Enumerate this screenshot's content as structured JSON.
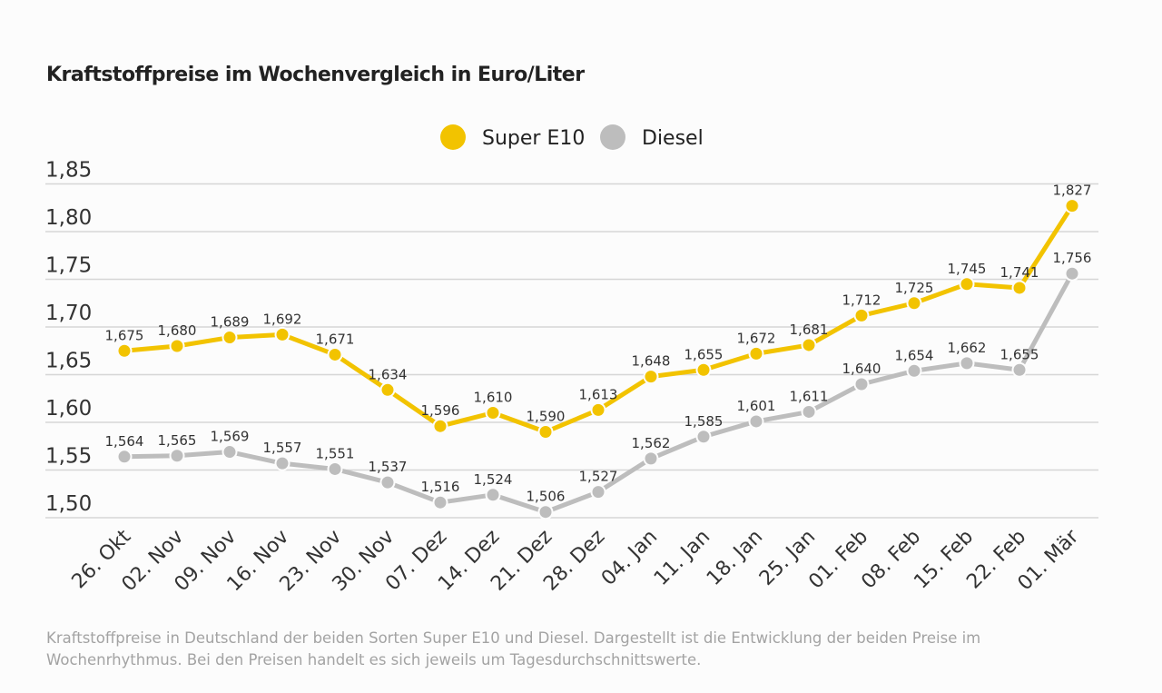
{
  "chart_data": {
    "type": "line",
    "title": "Kraftstoffpreise im Wochenvergleich in Euro/Liter",
    "categories": [
      "26. Okt",
      "02. Nov",
      "09. Nov",
      "16. Nov",
      "23. Nov",
      "30. Nov",
      "07. Dez",
      "14. Dez",
      "21. Dez",
      "28. Dez",
      "04. Jan",
      "11. Jan",
      "18. Jan",
      "25. Jan",
      "01. Feb",
      "08. Feb",
      "15. Feb",
      "22. Feb",
      "01. Mär"
    ],
    "series": [
      {
        "name": "Super E10",
        "color": "#f2c300",
        "values": [
          1.675,
          1.68,
          1.689,
          1.692,
          1.671,
          1.634,
          1.596,
          1.61,
          1.59,
          1.613,
          1.648,
          1.655,
          1.672,
          1.681,
          1.712,
          1.725,
          1.745,
          1.741,
          1.827
        ],
        "labels": [
          "1,675",
          "1,680",
          "1,689",
          "1,692",
          "1,671",
          "1,634",
          "1,596",
          "1,610",
          "1,590",
          "1,613",
          "1,648",
          "1,655",
          "1,672",
          "1,681",
          "1,712",
          "1,725",
          "1,745",
          "1,741",
          "1,827"
        ]
      },
      {
        "name": "Diesel",
        "color": "#bdbdbd",
        "values": [
          1.564,
          1.565,
          1.569,
          1.557,
          1.551,
          1.537,
          1.516,
          1.524,
          1.506,
          1.527,
          1.562,
          1.585,
          1.601,
          1.611,
          1.64,
          1.654,
          1.662,
          1.655,
          1.756
        ],
        "labels": [
          "1,564",
          "1,565",
          "1,569",
          "1,557",
          "1,551",
          "1,537",
          "1,516",
          "1,524",
          "1,506",
          "1,527",
          "1,562",
          "1,585",
          "1,601",
          "1,611",
          "1,640",
          "1,654",
          "1,662",
          "1,655",
          "1,756"
        ]
      }
    ],
    "yticks": [
      1.5,
      1.55,
      1.6,
      1.65,
      1.7,
      1.75,
      1.8,
      1.85
    ],
    "ytick_labels": [
      "1,50",
      "1,55",
      "1,60",
      "1,65",
      "1,70",
      "1,75",
      "1,80",
      "1,85"
    ],
    "ylim": [
      1.5,
      1.85
    ],
    "xlabel": "",
    "ylabel": "",
    "grid": "horizontal",
    "legend": "top-center"
  },
  "footer": "Kraftstoffpreise in Deutschland der beiden Sorten Super E10 und Diesel. Dargestellt ist die Entwicklung der beiden Preise im Wochenrhythmus. Bei den Preisen handelt es sich jeweils um Tagesdurchschnittswerte."
}
